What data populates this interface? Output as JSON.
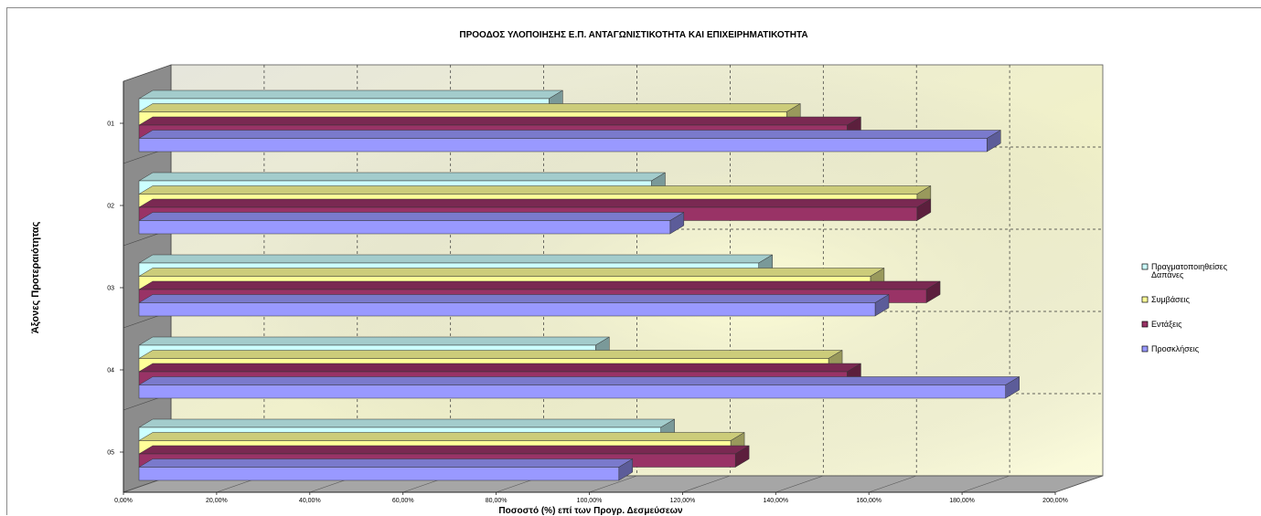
{
  "chart_data": {
    "type": "bar",
    "orientation": "horizontal",
    "three_d": true,
    "title": "ΠΡΟΟΔΟΣ ΥΛΟΠΟΙΗΣΗΣ Ε.Π. ΑΝΤΑΓΩΝΙΣΤΙΚΟΤΗΤΑ ΚΑΙ ΕΠΙΧΕΙΡΗΜΑΤΙΚΟΤΗΤΑ",
    "xlabel": "Ποσοστό (%) επί των Προγρ. Δεσμεύσεων",
    "ylabel": "Άξονες Προτεραιότητας",
    "categories": [
      "01",
      "02",
      "03",
      "04",
      "05"
    ],
    "x_ticks": [
      "0,00%",
      "20,00%",
      "40,00%",
      "60,00%",
      "80,00%",
      "100,00%",
      "120,00%",
      "140,00%",
      "160,00%",
      "180,00%",
      "200,00%"
    ],
    "xlim": [
      0,
      200
    ],
    "grid": true,
    "legend_position": "right",
    "series": [
      {
        "name": "Πραγματοποιηθείσες Δαπάνες",
        "legend_lines": [
          "Πραγματοποιηθείσες",
          "Δαπάνες"
        ],
        "color": "#ccffff",
        "values": [
          88,
          110,
          133,
          98,
          112
        ]
      },
      {
        "name": "Συμβάσεις",
        "legend_lines": [
          "Συμβάσεις"
        ],
        "color": "#ffff99",
        "values": [
          139,
          167,
          157,
          148,
          127
        ]
      },
      {
        "name": "Εντάξεις",
        "legend_lines": [
          "Εντάξεις"
        ],
        "color": "#993366",
        "values": [
          152,
          167,
          169,
          152,
          128
        ]
      },
      {
        "name": "Προσκλήσεις",
        "legend_lines": [
          "Προσκλήσεις"
        ],
        "color": "#9999ff",
        "values": [
          182,
          114,
          158,
          186,
          103
        ]
      }
    ]
  }
}
